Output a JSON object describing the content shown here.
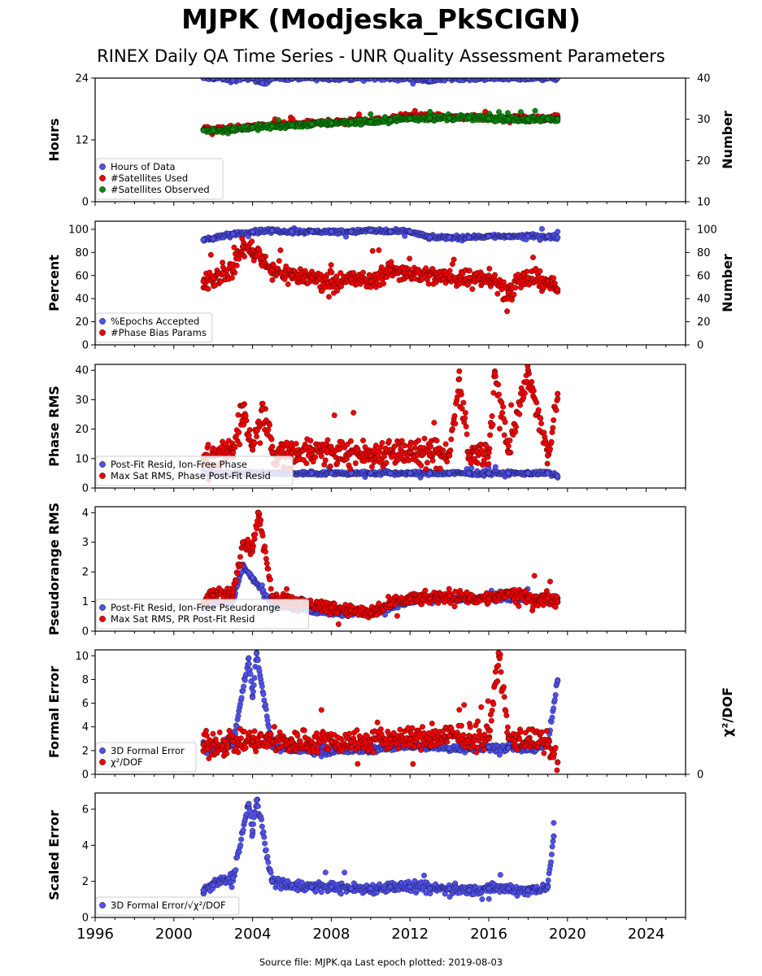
{
  "title": "MJPK (Modjeska_PkSCIGN)",
  "subtitle": "RINEX Daily QA Time Series - UNR Quality Assessment Parameters",
  "footer": "Source file: MJPK.qa Last epoch plotted: 2019-08-03",
  "colors": {
    "blue": "#5050ee",
    "red": "#ee0000",
    "green": "#0a8a0a",
    "edge": "#000000"
  },
  "chart_data": [
    {
      "type": "scatter",
      "ylabel": "Hours",
      "ylabel_right": "Number",
      "xlim": [
        1996,
        2026
      ],
      "ylim": [
        0,
        24
      ],
      "yticks": [
        0,
        12,
        24
      ],
      "ylim_right": [
        10,
        40
      ],
      "yticks_right": [
        10,
        20,
        30,
        40
      ],
      "legend": "lower-left",
      "series": [
        {
          "name": "Hours of Data",
          "color": "blue",
          "axis": "left",
          "x": [
            2001.5,
            2002.0,
            2002.5,
            2003.0,
            2003.5,
            2004.0,
            2004.5,
            2005.0,
            2006.0,
            2007.0,
            2008.0,
            2009.0,
            2010.0,
            2011.0,
            2012.0,
            2013.0,
            2014.0,
            2015.0,
            2016.0,
            2017.0,
            2018.0,
            2019.0,
            2019.5
          ],
          "y": [
            24,
            24,
            24,
            23.5,
            24,
            24,
            23,
            24,
            24,
            24,
            24,
            24,
            24,
            24,
            24,
            23.5,
            24,
            24,
            24,
            24,
            24,
            24,
            24
          ]
        },
        {
          "name": "#Satellites Used",
          "color": "red",
          "axis": "right",
          "x": [
            2001.5,
            2002.0,
            2003.0,
            2004.0,
            2005.0,
            2006.0,
            2007.0,
            2008.0,
            2009.0,
            2010.0,
            2011.0,
            2011.5,
            2012.0,
            2013.0,
            2014.0,
            2015.0,
            2016.0,
            2017.0,
            2018.0,
            2019.0,
            2019.5
          ],
          "y": [
            27.5,
            27.5,
            27.8,
            28.2,
            28.5,
            28.7,
            29.0,
            29.3,
            29.5,
            29.6,
            30.0,
            30.7,
            30.8,
            30.5,
            30.5,
            30.5,
            30.3,
            30.2,
            30.1,
            30.3,
            30.3
          ]
        },
        {
          "name": "#Satellites Observed",
          "color": "green",
          "axis": "right",
          "x": [
            2001.5,
            2002.0,
            2003.0,
            2004.0,
            2005.0,
            2006.0,
            2007.0,
            2008.0,
            2009.0,
            2010.0,
            2011.0,
            2012.0,
            2013.0,
            2014.0,
            2015.0,
            2016.0,
            2017.0,
            2018.0,
            2019.0,
            2019.5
          ],
          "y": [
            27.3,
            27.3,
            27.6,
            28.0,
            28.3,
            28.5,
            28.8,
            29.1,
            29.3,
            29.4,
            29.8,
            30.2,
            30.3,
            30.3,
            30.4,
            30.2,
            30.0,
            30.0,
            30.1,
            30.1
          ]
        }
      ]
    },
    {
      "type": "scatter",
      "ylabel": "Percent",
      "ylabel_right": "Number",
      "xlim": [
        1996,
        2026
      ],
      "ylim": [
        0,
        107
      ],
      "yticks": [
        0,
        20,
        40,
        60,
        80,
        100
      ],
      "ylim_right": [
        0,
        107
      ],
      "yticks_right": [
        0,
        20,
        40,
        60,
        80,
        100
      ],
      "legend": "lower-left",
      "series": [
        {
          "name": "%Epochs Accepted",
          "color": "blue",
          "axis": "left",
          "x": [
            2001.5,
            2002.0,
            2003.0,
            2004.0,
            2005.0,
            2006.0,
            2007.0,
            2008.0,
            2009.0,
            2010.0,
            2011.0,
            2012.0,
            2013.0,
            2014.0,
            2015.0,
            2016.0,
            2017.0,
            2018.0,
            2019.0,
            2019.5
          ],
          "y": [
            91,
            92,
            96,
            98,
            99,
            98,
            98,
            98,
            98,
            99,
            98,
            98,
            93,
            93,
            93,
            94,
            94,
            94,
            94,
            93
          ]
        },
        {
          "name": "#Phase Bias Params",
          "color": "red",
          "axis": "right",
          "x": [
            2001.5,
            2002.0,
            2002.5,
            2003.0,
            2003.5,
            2004.0,
            2004.5,
            2005.0,
            2006.0,
            2007.0,
            2008.0,
            2009.0,
            2010.0,
            2011.0,
            2012.0,
            2013.0,
            2014.0,
            2015.0,
            2016.0,
            2017.0,
            2018.0,
            2019.0,
            2019.5
          ],
          "y": [
            55,
            58,
            62,
            65,
            85,
            82,
            75,
            65,
            60,
            58,
            55,
            57,
            55,
            65,
            62,
            60,
            58,
            58,
            60,
            45,
            58,
            55,
            48
          ]
        }
      ]
    },
    {
      "type": "scatter",
      "ylabel": "Phase RMS",
      "xlim": [
        1996,
        2026
      ],
      "ylim": [
        0,
        42
      ],
      "yticks": [
        0,
        10,
        20,
        30,
        40
      ],
      "legend": "lower-left",
      "series": [
        {
          "name": "Post-Fit Resid, Ion-Free Phase",
          "color": "blue",
          "axis": "left",
          "x": [
            2001.5,
            2002.0,
            2003.0,
            2004.0,
            2005.0,
            2006.0,
            2007.0,
            2008.0,
            2009.0,
            2010.0,
            2011.0,
            2012.0,
            2013.0,
            2014.0,
            2015.0,
            2016.0,
            2017.0,
            2018.0,
            2019.0,
            2019.5
          ],
          "y": [
            5,
            5,
            5,
            5,
            5,
            5,
            5,
            5,
            5,
            5,
            5,
            5,
            5,
            5,
            5,
            5,
            5,
            5,
            5,
            4
          ]
        },
        {
          "name": "Max Sat RMS, Phase Post-Fit Resid",
          "color": "red",
          "axis": "left",
          "x": [
            2001.5,
            2002.0,
            2003.0,
            2003.5,
            2004.0,
            2004.5,
            2005.0,
            2006.0,
            2007.0,
            2008.0,
            2009.0,
            2010.0,
            2011.0,
            2012.0,
            2013.0,
            2014.0,
            2014.5,
            2015.0,
            2016.0,
            2016.3,
            2017.0,
            2018.0,
            2019.0,
            2019.5
          ],
          "y": [
            10,
            11,
            12,
            28,
            13,
            27,
            12,
            12,
            13,
            12,
            12,
            11,
            13,
            12,
            11,
            11,
            37,
            11,
            12,
            39,
            12,
            40,
            11,
            32
          ]
        }
      ]
    },
    {
      "type": "scatter",
      "ylabel": "Pseudorange RMS",
      "xlim": [
        1996,
        2026
      ],
      "ylim": [
        0,
        4.2
      ],
      "yticks": [
        0,
        1,
        2,
        3,
        4
      ],
      "legend": "lower-left",
      "series": [
        {
          "name": "Post-Fit Resid, Ion-Free Pseudorange",
          "color": "blue",
          "axis": "left",
          "x": [
            2001.5,
            2002.0,
            2003.0,
            2003.5,
            2004.0,
            2005.0,
            2006.0,
            2007.0,
            2008.0,
            2009.0,
            2010.0,
            2011.0,
            2012.0,
            2013.0,
            2014.0,
            2015.0,
            2016.0,
            2017.0,
            2018.0,
            2019.0,
            2019.5
          ],
          "y": [
            0.8,
            0.9,
            1.0,
            2.2,
            1.8,
            0.9,
            0.8,
            0.7,
            0.6,
            0.6,
            0.6,
            0.8,
            1.0,
            1.1,
            1.1,
            1.1,
            1.1,
            1.1,
            1.1,
            1.1,
            1.1
          ]
        },
        {
          "name": "Max Sat RMS, PR Post-Fit Resid",
          "color": "red",
          "axis": "left",
          "x": [
            2001.5,
            2002.0,
            2003.0,
            2003.5,
            2004.0,
            2004.3,
            2005.0,
            2006.0,
            2007.0,
            2008.0,
            2009.0,
            2010.0,
            2011.0,
            2012.0,
            2013.0,
            2014.0,
            2015.0,
            2016.0,
            2017.0,
            2018.0,
            2019.0,
            2019.5
          ],
          "y": [
            1.0,
            1.2,
            1.3,
            3.0,
            2.8,
            4.0,
            1.2,
            1.0,
            0.9,
            0.8,
            0.7,
            0.6,
            0.9,
            1.1,
            1.1,
            1.2,
            1.1,
            1.1,
            1.3,
            1.1,
            1.1,
            1.0
          ]
        }
      ]
    },
    {
      "type": "scatter",
      "ylabel": "Formal Error",
      "ylabel_right": "χ²/DOF",
      "xlim": [
        1996,
        2026
      ],
      "ylim": [
        0,
        10.5
      ],
      "yticks": [
        0,
        2,
        4,
        6,
        8,
        10
      ],
      "ylim_right": [
        0,
        4.2
      ],
      "yticks_right": [
        0
      ],
      "legend": "lower-left",
      "series": [
        {
          "name": "3D Formal Error",
          "color": "blue",
          "axis": "left",
          "x": [
            2001.5,
            2002.0,
            2003.0,
            2003.8,
            2004.0,
            2004.2,
            2005.0,
            2006.0,
            2007.0,
            2008.0,
            2009.0,
            2010.0,
            2011.0,
            2012.0,
            2013.0,
            2014.0,
            2015.0,
            2016.0,
            2017.0,
            2018.0,
            2019.0,
            2019.5
          ],
          "y": [
            2.0,
            2.2,
            2.5,
            9.8,
            6.5,
            10.2,
            2.3,
            2.1,
            2.0,
            2.0,
            2.0,
            2.1,
            2.3,
            2.4,
            2.3,
            2.2,
            2.2,
            2.3,
            2.2,
            2.1,
            2.5,
            7.9
          ]
        },
        {
          "name": "χ²/DOF",
          "color": "red",
          "axis": "right",
          "x": [
            2001.5,
            2002.0,
            2003.0,
            2004.0,
            2005.0,
            2006.0,
            2007.0,
            2008.0,
            2009.0,
            2010.0,
            2011.0,
            2012.0,
            2013.0,
            2014.0,
            2015.0,
            2016.0,
            2016.5,
            2017.0,
            2018.0,
            2019.0,
            2019.5
          ],
          "y": [
            1.0,
            1.0,
            1.1,
            1.1,
            1.1,
            1.1,
            1.1,
            1.1,
            1.1,
            1.1,
            1.2,
            1.2,
            1.2,
            1.3,
            1.3,
            1.2,
            4.1,
            1.2,
            1.2,
            1.0,
            0.4
          ]
        }
      ]
    },
    {
      "type": "scatter",
      "ylabel": "Scaled Error",
      "xlim": [
        1996,
        2026
      ],
      "ylim": [
        0,
        6.9
      ],
      "yticks": [
        0,
        2,
        4,
        6
      ],
      "xticks": [
        1996,
        2000,
        2004,
        2008,
        2012,
        2016,
        2020,
        2024
      ],
      "legend": "lower-left",
      "series": [
        {
          "name": "3D Formal Error/√χ²/DOF",
          "color": "blue",
          "axis": "left",
          "x": [
            2001.5,
            2002.0,
            2003.0,
            2003.8,
            2004.0,
            2004.2,
            2005.0,
            2006.0,
            2007.0,
            2008.0,
            2009.0,
            2010.0,
            2011.0,
            2012.0,
            2013.0,
            2014.0,
            2015.0,
            2016.0,
            2017.0,
            2018.0,
            2019.0,
            2019.3
          ],
          "y": [
            1.5,
            1.8,
            2.2,
            6.3,
            4.8,
            6.5,
            2.0,
            1.8,
            1.7,
            1.7,
            1.6,
            1.6,
            1.7,
            1.7,
            1.6,
            1.6,
            1.5,
            1.6,
            1.6,
            1.5,
            1.7,
            4.5
          ]
        }
      ]
    }
  ]
}
